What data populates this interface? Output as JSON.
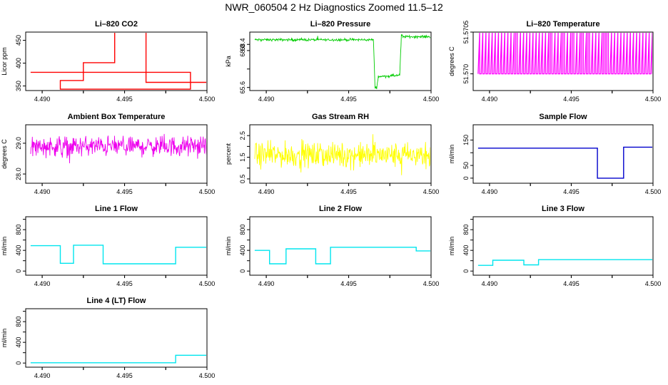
{
  "title": "NWR_060504  2 Hz Diagnostics Zoomed 11.5–12",
  "chart_data": [
    {
      "type": "line",
      "title": "Li–820 CO2",
      "ylabel": "Licor ppm",
      "color": "#ff0000",
      "xlim": [
        4.489,
        4.5
      ],
      "xticks": [
        "4.490",
        "4.495",
        "4.500"
      ],
      "xtick_values": [
        4.49,
        4.495,
        4.5
      ],
      "xminor_values": [
        4.4925,
        4.4975
      ],
      "xminor_labels": [
        "4.493",
        "4.498"
      ],
      "ylim": [
        340,
        468
      ],
      "yticks": [
        "350",
        "400",
        "450"
      ],
      "ytick_values": [
        350,
        400,
        450
      ],
      "series": [
        {
          "style": "step",
          "x": [
            4.4893,
            4.499,
            4.499,
            4.4911,
            4.4911,
            4.4925,
            4.4925,
            4.4944,
            4.4944,
            4.4963,
            4.4963,
            4.4981,
            4.4981,
            4.5
          ],
          "values": [
            380,
            380,
            343,
            343,
            362,
            362,
            401,
            401,
            475,
            475,
            358,
            358,
            358,
            358
          ]
        }
      ]
    },
    {
      "type": "line",
      "title": "Li–820 Pressure",
      "ylabel": "kPa",
      "color": "#00cc00",
      "xlim": [
        4.489,
        4.5
      ],
      "xticks": [
        "4.490",
        "4.495",
        "4.500"
      ],
      "xtick_values": [
        4.49,
        4.495,
        4.5
      ],
      "xminor_values": [
        4.4925,
        4.4975
      ],
      "xminor_labels": [
        "4.493",
        "4.498"
      ],
      "ylim": [
        65.4,
        69.2
      ],
      "yticks": [
        "65.6",
        "68.0",
        "68.4"
      ],
      "ytick_values": [
        65.6,
        66.8,
        68.0,
        68.4
      ],
      "series": [
        {
          "style": "noisy",
          "x": [
            4.4893,
            4.4965,
            4.4966,
            4.4967,
            4.4968,
            4.4981,
            4.4982,
            4.4983,
            4.5
          ],
          "values": [
            68.7,
            68.7,
            65.6,
            65.6,
            66.3,
            66.4,
            69.0,
            68.9,
            68.9
          ],
          "noise": 0.05
        }
      ]
    },
    {
      "type": "line",
      "title": "Li–820 Temperature",
      "ylabel": "degrees C",
      "color": "#ff00ff",
      "xlim": [
        4.489,
        4.5
      ],
      "xticks": [
        "4.490",
        "4.495",
        "4.500"
      ],
      "xtick_values": [
        4.49,
        4.495,
        4.5
      ],
      "xminor_values": [
        4.4925,
        4.4975
      ],
      "xminor_labels": [
        "4.493",
        "4.498"
      ],
      "ylim": [
        51.5698,
        51.5705
      ],
      "yticks": [
        "51.570",
        "51.5705"
      ],
      "ytick_values": [
        51.57,
        51.5705
      ],
      "series": [
        {
          "style": "toggle",
          "x": [
            4.4893,
            4.5
          ],
          "values": [
            51.57,
            51.5705
          ]
        }
      ]
    },
    {
      "type": "line",
      "title": "Ambient Box Temperature",
      "ylabel": "degrees C",
      "color": "#ee00ee",
      "xlim": [
        4.489,
        4.5
      ],
      "xticks": [
        "4.490",
        "4.495",
        "4.500"
      ],
      "xtick_values": [
        4.49,
        4.495,
        4.5
      ],
      "xminor_values": [
        4.4925,
        4.4975
      ],
      "xminor_labels": [
        "4.493",
        "4.498"
      ],
      "ylim": [
        27.7,
        29.6
      ],
      "yticks": [
        "28.0",
        "29.0"
      ],
      "ytick_values": [
        28.0,
        29.0
      ],
      "series": [
        {
          "style": "noisy",
          "x": [
            4.4893,
            4.5
          ],
          "values": [
            28.9,
            28.9
          ],
          "noise": 0.2
        }
      ]
    },
    {
      "type": "line",
      "title": "Gas Stream RH",
      "ylabel": "percent",
      "color": "#ffff00",
      "xlim": [
        4.489,
        4.5
      ],
      "xticks": [
        "4.490",
        "4.495",
        "4.500"
      ],
      "xtick_values": [
        4.49,
        4.495,
        4.5
      ],
      "xminor_values": [
        4.4925,
        4.4975
      ],
      "xminor_labels": [
        "4.493",
        "4.498"
      ],
      "ylim": [
        0.3,
        3.0
      ],
      "yticks": [
        "0.5",
        "1.5",
        "2.5"
      ],
      "ytick_values": [
        0.5,
        1.0,
        1.5,
        2.0,
        2.5
      ],
      "series": [
        {
          "style": "noisy",
          "x": [
            4.4893,
            4.5
          ],
          "values": [
            1.6,
            1.6
          ],
          "noise": 0.35
        }
      ]
    },
    {
      "type": "line",
      "title": "Sample Flow",
      "ylabel": "ml/min",
      "color": "#0000cc",
      "xlim": [
        4.489,
        4.5
      ],
      "xticks": [
        "4.490",
        "4.495",
        "4.500"
      ],
      "xtick_values": [
        4.49,
        4.495,
        4.5
      ],
      "xminor_values": [
        4.4925,
        4.4975
      ],
      "xminor_labels": [
        "4.493",
        "4.498"
      ],
      "ylim": [
        -20,
        210
      ],
      "yticks": [
        "0",
        "50",
        "150"
      ],
      "ytick_values": [
        0,
        50,
        100,
        150
      ],
      "series": [
        {
          "style": "step",
          "x": [
            4.4893,
            4.4966,
            4.4966,
            4.4982,
            4.4982,
            4.5
          ],
          "values": [
            118,
            118,
            0,
            0,
            122,
            122
          ]
        }
      ]
    },
    {
      "type": "line",
      "title": "Line 1 Flow",
      "ylabel": "ml/min",
      "color": "#00e5ee",
      "xlim": [
        4.489,
        4.5
      ],
      "xticks": [
        "4.490",
        "4.495",
        "4.500"
      ],
      "xtick_values": [
        4.49,
        4.495,
        4.5
      ],
      "xminor_values": [
        4.4925,
        4.4975
      ],
      "xminor_labels": [
        "4.493",
        "4.498"
      ],
      "ylim": [
        -80,
        1050
      ],
      "yticks": [
        "0",
        "400",
        "800"
      ],
      "ytick_values": [
        0,
        200,
        400,
        600,
        800,
        1000
      ],
      "series": [
        {
          "style": "step",
          "x": [
            4.4893,
            4.4911,
            4.4911,
            4.4919,
            4.4919,
            4.4937,
            4.4937,
            4.4981,
            4.4981,
            4.5
          ],
          "values": [
            490,
            490,
            150,
            150,
            500,
            500,
            140,
            140,
            460,
            460
          ]
        }
      ]
    },
    {
      "type": "line",
      "title": "Line 2 Flow",
      "ylabel": "ml/min",
      "color": "#00e5ee",
      "xlim": [
        4.489,
        4.5
      ],
      "xticks": [
        "4.490",
        "4.495",
        "4.500"
      ],
      "xtick_values": [
        4.49,
        4.495,
        4.5
      ],
      "xminor_values": [
        4.4925,
        4.4975
      ],
      "xminor_labels": [
        "4.493",
        "4.498"
      ],
      "ylim": [
        -80,
        1050
      ],
      "yticks": [
        "0",
        "400",
        "800"
      ],
      "ytick_values": [
        0,
        200,
        400,
        600,
        800,
        1000
      ],
      "series": [
        {
          "style": "step",
          "x": [
            4.4893,
            4.4902,
            4.4902,
            4.4912,
            4.4912,
            4.493,
            4.493,
            4.4939,
            4.4939,
            4.4991,
            4.4991,
            4.5
          ],
          "values": [
            400,
            400,
            140,
            140,
            430,
            430,
            140,
            140,
            460,
            460,
            390,
            390
          ]
        }
      ]
    },
    {
      "type": "line",
      "title": "Line 3 Flow",
      "ylabel": "ml/min",
      "color": "#00e5ee",
      "xlim": [
        4.489,
        4.5
      ],
      "xticks": [
        "4.490",
        "4.495",
        "4.500"
      ],
      "xtick_values": [
        4.49,
        4.495,
        4.5
      ],
      "xminor_values": [
        4.4925,
        4.4975
      ],
      "xminor_labels": [
        "4.493",
        "4.498"
      ],
      "ylim": [
        -80,
        1050
      ],
      "yticks": [
        "0",
        "400",
        "800"
      ],
      "ytick_values": [
        0,
        200,
        400,
        600,
        800,
        1000
      ],
      "series": [
        {
          "style": "step",
          "x": [
            4.4893,
            4.4902,
            4.4902,
            4.4921,
            4.4921,
            4.493,
            4.493,
            4.5
          ],
          "values": [
            110,
            110,
            210,
            210,
            120,
            120,
            220,
            220
          ]
        }
      ]
    },
    {
      "type": "line",
      "title": "Line 4 (LT) Flow",
      "ylabel": "ml/min",
      "color": "#00e5ee",
      "xlim": [
        4.489,
        4.5
      ],
      "xticks": [
        "4.490",
        "4.495",
        "4.500"
      ],
      "xtick_values": [
        4.49,
        4.495,
        4.5
      ],
      "xminor_values": [
        4.4925,
        4.4975
      ],
      "xminor_labels": [
        "4.493",
        "4.498"
      ],
      "ylim": [
        -80,
        1050
      ],
      "yticks": [
        "0",
        "400",
        "800"
      ],
      "ytick_values": [
        0,
        200,
        400,
        600,
        800,
        1000
      ],
      "series": [
        {
          "style": "step",
          "x": [
            4.4893,
            4.4981,
            4.4981,
            4.5
          ],
          "values": [
            5,
            5,
            150,
            150
          ]
        }
      ]
    }
  ]
}
